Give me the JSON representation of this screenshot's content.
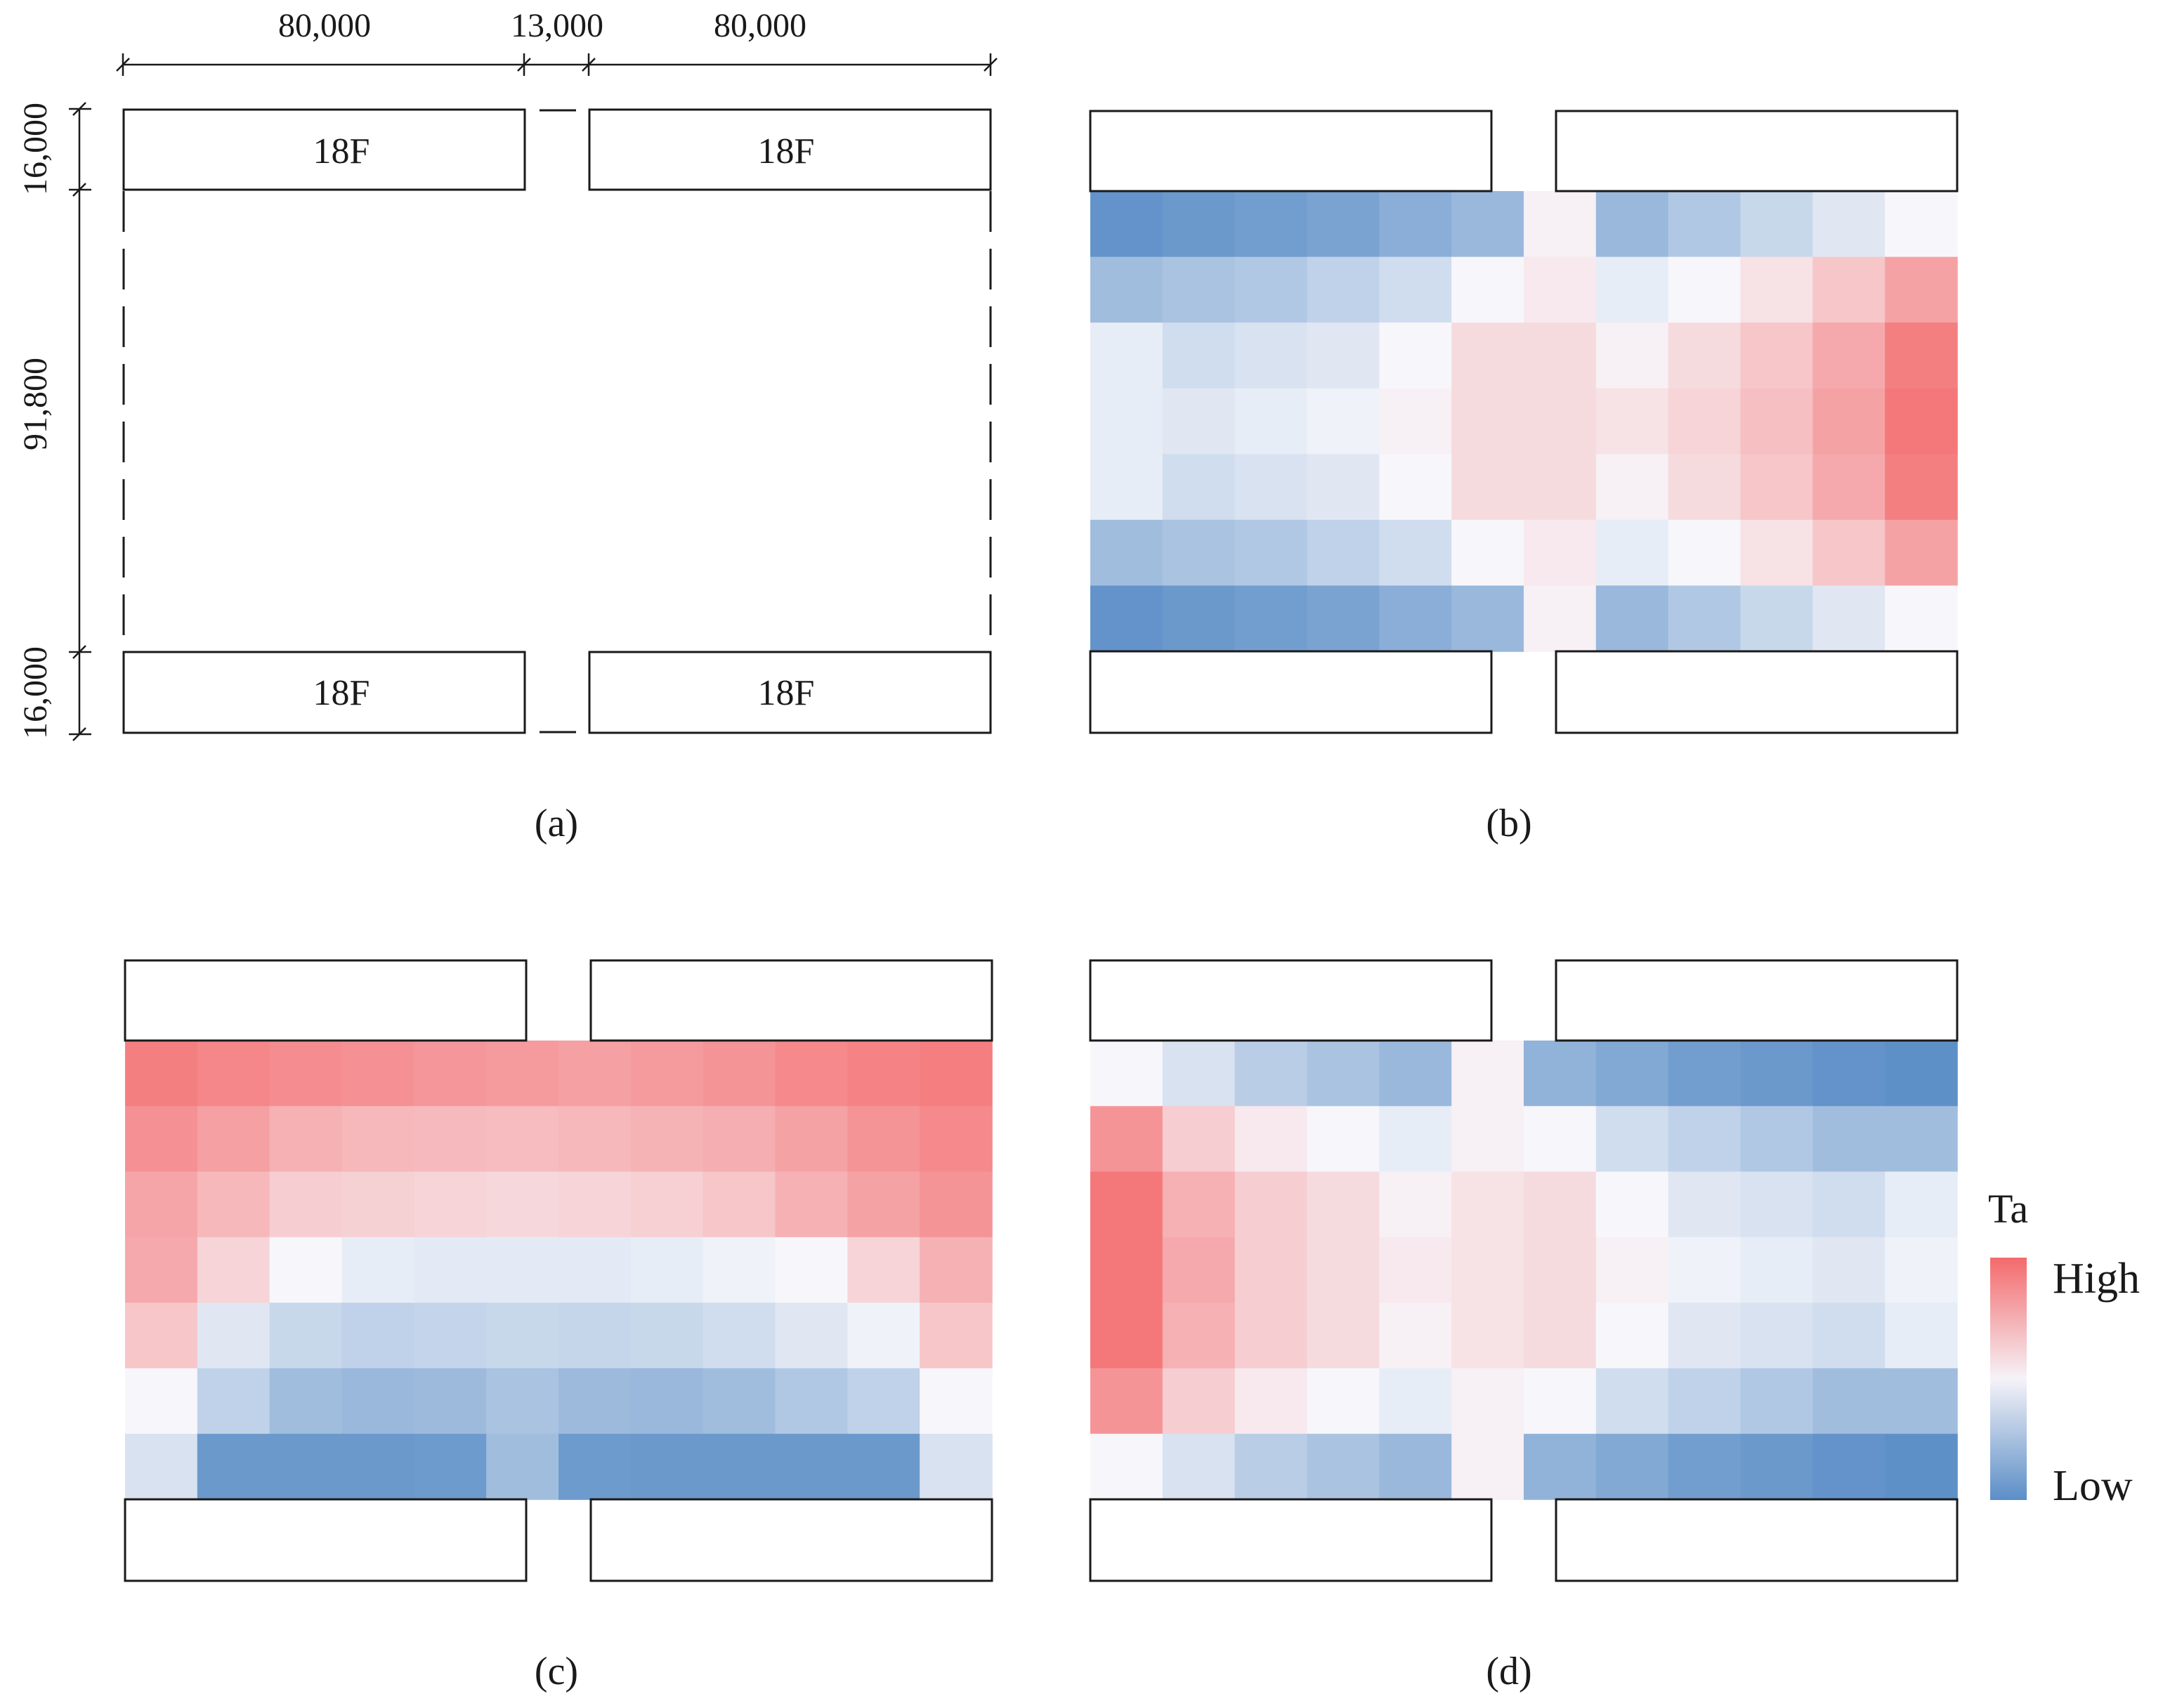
{
  "panel_a": {
    "dims_top": [
      "80,000",
      "13,000",
      "80,000"
    ],
    "dims_left": [
      "16,000",
      "91,800",
      "16,000"
    ],
    "building_label": "18F"
  },
  "captions": {
    "a": "(a)",
    "b": "(b)",
    "c": "(c)",
    "d": "(d)"
  },
  "legend": {
    "title": "Ta",
    "high": "High",
    "low": "Low",
    "high_color": "#f46a6c",
    "mid_color": "#f7f7fb",
    "low_color": "#5b8ec7"
  },
  "chart_data": [
    {
      "type": "heatmap",
      "panel": "b",
      "note": "relative air temperature Ta, -1 = Low (blue), 0 = neutral (white), +1 = High (red); 7 rows (top to bottom) x 12 columns (left to right)",
      "values": [
        [
          -0.95,
          -0.9,
          -0.85,
          -0.8,
          -0.7,
          -0.6,
          0.05,
          -0.6,
          -0.45,
          -0.3,
          -0.15,
          0.0
        ],
        [
          -0.55,
          -0.5,
          -0.45,
          -0.35,
          -0.25,
          0.0,
          0.1,
          -0.1,
          0.0,
          0.15,
          0.35,
          0.6
        ],
        [
          -0.1,
          -0.25,
          -0.2,
          -0.15,
          0.0,
          0.2,
          0.2,
          0.05,
          0.2,
          0.35,
          0.55,
          0.85
        ],
        [
          -0.1,
          -0.15,
          -0.1,
          -0.05,
          0.05,
          0.2,
          0.2,
          0.15,
          0.25,
          0.4,
          0.6,
          0.9
        ],
        [
          -0.1,
          -0.25,
          -0.2,
          -0.15,
          0.0,
          0.2,
          0.2,
          0.05,
          0.2,
          0.35,
          0.55,
          0.85
        ],
        [
          -0.55,
          -0.5,
          -0.45,
          -0.35,
          -0.25,
          0.0,
          0.1,
          -0.1,
          0.0,
          0.15,
          0.35,
          0.6
        ],
        [
          -0.95,
          -0.9,
          -0.85,
          -0.8,
          -0.7,
          -0.6,
          0.05,
          -0.6,
          -0.45,
          -0.3,
          -0.15,
          0.0
        ]
      ]
    },
    {
      "type": "heatmap",
      "panel": "c",
      "note": "relative air temperature Ta, -1 = Low (blue), 0 = neutral (white), +1 = High (red); 7 rows x 12 columns",
      "values": [
        [
          0.85,
          0.8,
          0.75,
          0.72,
          0.68,
          0.65,
          0.62,
          0.65,
          0.7,
          0.78,
          0.82,
          0.86
        ],
        [
          0.72,
          0.62,
          0.5,
          0.45,
          0.43,
          0.42,
          0.45,
          0.48,
          0.52,
          0.6,
          0.7,
          0.78
        ],
        [
          0.58,
          0.45,
          0.3,
          0.27,
          0.25,
          0.22,
          0.25,
          0.28,
          0.35,
          0.5,
          0.6,
          0.7
        ],
        [
          0.55,
          0.25,
          0.0,
          -0.1,
          -0.12,
          -0.12,
          -0.12,
          -0.1,
          -0.05,
          0.0,
          0.25,
          0.5
        ],
        [
          0.35,
          -0.15,
          -0.3,
          -0.35,
          -0.33,
          -0.3,
          -0.32,
          -0.3,
          -0.25,
          -0.15,
          -0.05,
          0.35
        ],
        [
          0.0,
          -0.35,
          -0.55,
          -0.6,
          -0.58,
          -0.5,
          -0.58,
          -0.6,
          -0.55,
          -0.45,
          -0.35,
          0.0
        ],
        [
          -0.2,
          -0.9,
          -0.9,
          -0.9,
          -0.88,
          -0.55,
          -0.88,
          -0.9,
          -0.9,
          -0.9,
          -0.9,
          -0.2
        ]
      ]
    },
    {
      "type": "heatmap",
      "panel": "d",
      "note": "relative air temperature Ta, -1 = Low (blue), 0 = neutral (white), +1 = High (red); 7 rows x 12 columns",
      "values": [
        [
          0.0,
          -0.2,
          -0.4,
          -0.5,
          -0.6,
          0.05,
          -0.65,
          -0.75,
          -0.85,
          -0.9,
          -0.95,
          -0.98
        ],
        [
          0.7,
          0.3,
          0.1,
          0.0,
          -0.1,
          0.05,
          0.0,
          -0.25,
          -0.35,
          -0.45,
          -0.55,
          -0.55
        ],
        [
          0.9,
          0.5,
          0.3,
          0.2,
          0.05,
          0.15,
          0.2,
          0.0,
          -0.15,
          -0.2,
          -0.25,
          -0.1
        ],
        [
          0.9,
          0.55,
          0.3,
          0.2,
          0.1,
          0.15,
          0.2,
          0.05,
          -0.05,
          -0.1,
          -0.15,
          -0.05
        ],
        [
          0.9,
          0.5,
          0.3,
          0.2,
          0.05,
          0.15,
          0.2,
          0.0,
          -0.15,
          -0.2,
          -0.25,
          -0.1
        ],
        [
          0.7,
          0.3,
          0.1,
          0.0,
          -0.1,
          0.05,
          0.0,
          -0.25,
          -0.35,
          -0.45,
          -0.55,
          -0.55
        ],
        [
          0.0,
          -0.2,
          -0.4,
          -0.5,
          -0.6,
          0.05,
          -0.65,
          -0.75,
          -0.85,
          -0.9,
          -0.95,
          -0.98
        ]
      ]
    }
  ]
}
